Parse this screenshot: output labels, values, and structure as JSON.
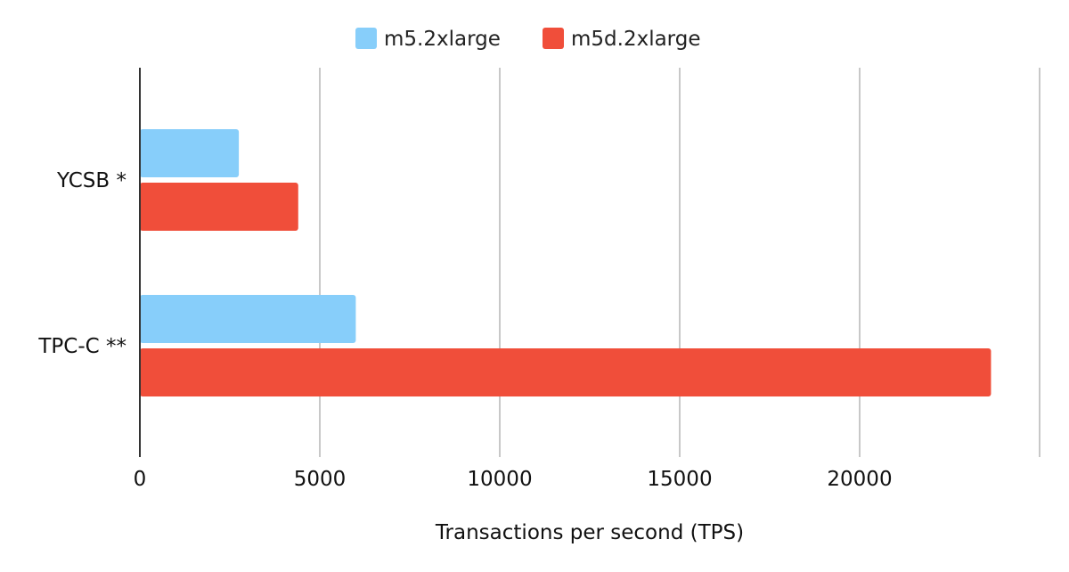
{
  "chart_data": {
    "type": "bar",
    "orientation": "horizontal",
    "title": "",
    "xlabel": "Transactions per second (TPS)",
    "ylabel": "",
    "xlim": [
      0,
      25000
    ],
    "x_ticks": [
      0,
      5000,
      10000,
      15000,
      20000
    ],
    "grid": true,
    "legend_position": "top-center",
    "categories": [
      "YCSB *",
      "TPC-C **"
    ],
    "series": [
      {
        "name": "m5.2xlarge",
        "color": "#87cefa",
        "values": [
          2750,
          6000
        ]
      },
      {
        "name": "m5d.2xlarge",
        "color": "#f04e3a",
        "values": [
          4400,
          23650
        ]
      }
    ]
  }
}
